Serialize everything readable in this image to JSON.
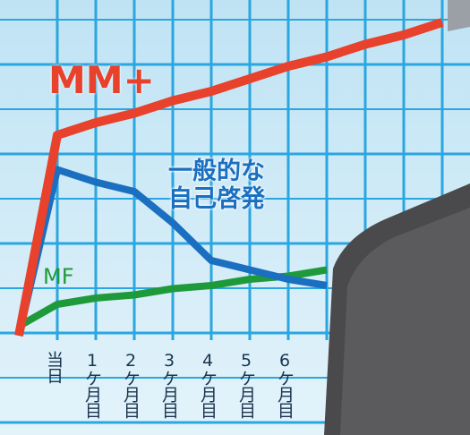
{
  "chart_data": {
    "type": "line",
    "categories": [
      null,
      "当日",
      "1ケ月目",
      "2ケ月目",
      "3ケ月目",
      "4ケ月目",
      "5ケ月目",
      "6ケ月目",
      null,
      null,
      null,
      null
    ],
    "series": [
      {
        "name": "MF",
        "color": "#1f9a3a",
        "values": [
          3,
          10,
          12,
          13,
          15,
          16,
          18,
          19,
          21,
          null,
          null,
          null
        ]
      },
      {
        "name": "一般的な\n自己啓発",
        "color": "#1b6fc0",
        "values": [
          0,
          53,
          49,
          46,
          36,
          24,
          21,
          18,
          16,
          null,
          null,
          null
        ]
      },
      {
        "name": "MM+",
        "color": "#e8412c",
        "values": [
          0,
          64,
          68,
          71,
          75,
          78,
          82,
          86,
          89,
          93,
          96,
          100
        ]
      }
    ],
    "ylim": [
      0,
      100
    ],
    "grid": true
  }
}
